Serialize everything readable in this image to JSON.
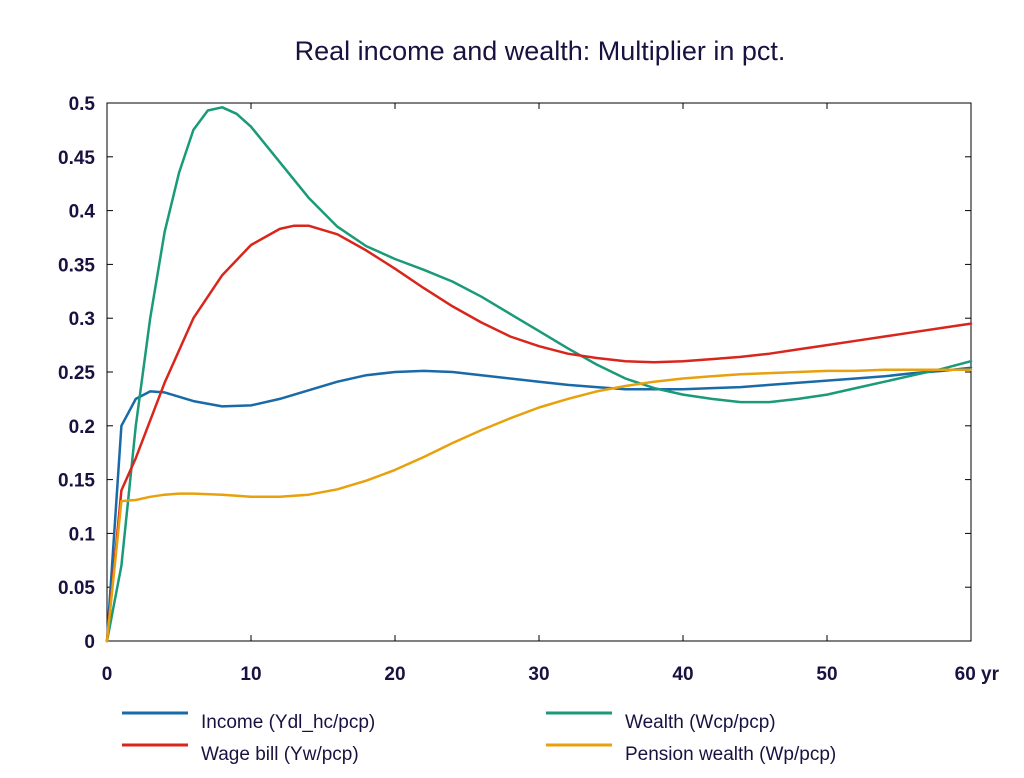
{
  "chart_data": {
    "type": "line",
    "title": "Real income and wealth: Multiplier in pct.",
    "xlabel": "",
    "ylabel": "",
    "xlim": [
      0,
      60
    ],
    "ylim": [
      0,
      0.5
    ],
    "x_ticks": [
      "0",
      "10",
      "20",
      "30",
      "40",
      "50",
      "60 yr"
    ],
    "y_ticks": [
      "0",
      "0.05",
      "0.1",
      "0.15",
      "0.2",
      "0.25",
      "0.3",
      "0.35",
      "0.4",
      "0.45",
      "0.5"
    ],
    "grid": false,
    "legend_position": "bottom",
    "series": [
      {
        "name": "Income (Ydl_hc/pcp)",
        "color": "#1a6aa8",
        "points": [
          [
            0,
            0
          ],
          [
            1,
            0.2
          ],
          [
            2,
            0.225
          ],
          [
            3,
            0.232
          ],
          [
            4,
            0.231
          ],
          [
            6,
            0.223
          ],
          [
            8,
            0.218
          ],
          [
            10,
            0.219
          ],
          [
            12,
            0.225
          ],
          [
            14,
            0.233
          ],
          [
            16,
            0.241
          ],
          [
            18,
            0.247
          ],
          [
            20,
            0.25
          ],
          [
            22,
            0.251
          ],
          [
            24,
            0.25
          ],
          [
            26,
            0.247
          ],
          [
            28,
            0.244
          ],
          [
            30,
            0.241
          ],
          [
            32,
            0.238
          ],
          [
            34,
            0.236
          ],
          [
            36,
            0.234
          ],
          [
            38,
            0.234
          ],
          [
            40,
            0.234
          ],
          [
            42,
            0.235
          ],
          [
            44,
            0.236
          ],
          [
            46,
            0.238
          ],
          [
            48,
            0.24
          ],
          [
            50,
            0.242
          ],
          [
            52,
            0.244
          ],
          [
            54,
            0.246
          ],
          [
            56,
            0.249
          ],
          [
            58,
            0.251
          ],
          [
            60,
            0.254
          ]
        ]
      },
      {
        "name": "Wealth (Wcp/pcp)",
        "color": "#1a9a78",
        "points": [
          [
            0,
            0
          ],
          [
            1,
            0.07
          ],
          [
            2,
            0.2
          ],
          [
            3,
            0.3
          ],
          [
            4,
            0.38
          ],
          [
            5,
            0.435
          ],
          [
            6,
            0.475
          ],
          [
            7,
            0.493
          ],
          [
            8,
            0.496
          ],
          [
            9,
            0.49
          ],
          [
            10,
            0.478
          ],
          [
            12,
            0.445
          ],
          [
            14,
            0.412
          ],
          [
            16,
            0.385
          ],
          [
            18,
            0.367
          ],
          [
            20,
            0.355
          ],
          [
            22,
            0.345
          ],
          [
            24,
            0.334
          ],
          [
            26,
            0.32
          ],
          [
            28,
            0.304
          ],
          [
            30,
            0.288
          ],
          [
            32,
            0.272
          ],
          [
            34,
            0.257
          ],
          [
            36,
            0.244
          ],
          [
            38,
            0.235
          ],
          [
            40,
            0.229
          ],
          [
            42,
            0.225
          ],
          [
            44,
            0.222
          ],
          [
            46,
            0.222
          ],
          [
            48,
            0.225
          ],
          [
            50,
            0.229
          ],
          [
            52,
            0.235
          ],
          [
            54,
            0.241
          ],
          [
            56,
            0.247
          ],
          [
            58,
            0.253
          ],
          [
            60,
            0.26
          ]
        ]
      },
      {
        "name": "Wage bill (Yw/pcp)",
        "color": "#d9261c",
        "points": [
          [
            0,
            0
          ],
          [
            1,
            0.14
          ],
          [
            2,
            0.17
          ],
          [
            4,
            0.24
          ],
          [
            6,
            0.3
          ],
          [
            8,
            0.34
          ],
          [
            10,
            0.368
          ],
          [
            12,
            0.383
          ],
          [
            13,
            0.386
          ],
          [
            14,
            0.386
          ],
          [
            16,
            0.378
          ],
          [
            18,
            0.363
          ],
          [
            20,
            0.346
          ],
          [
            22,
            0.328
          ],
          [
            24,
            0.311
          ],
          [
            26,
            0.296
          ],
          [
            28,
            0.283
          ],
          [
            30,
            0.274
          ],
          [
            32,
            0.267
          ],
          [
            34,
            0.263
          ],
          [
            36,
            0.26
          ],
          [
            38,
            0.259
          ],
          [
            40,
            0.26
          ],
          [
            42,
            0.262
          ],
          [
            44,
            0.264
          ],
          [
            46,
            0.267
          ],
          [
            48,
            0.271
          ],
          [
            50,
            0.275
          ],
          [
            52,
            0.279
          ],
          [
            54,
            0.283
          ],
          [
            56,
            0.287
          ],
          [
            58,
            0.291
          ],
          [
            60,
            0.295
          ]
        ]
      },
      {
        "name": "Pension wealth (Wp/pcp)",
        "color": "#e8a10c",
        "points": [
          [
            0,
            0
          ],
          [
            1,
            0.13
          ],
          [
            2,
            0.131
          ],
          [
            3,
            0.134
          ],
          [
            4,
            0.136
          ],
          [
            5,
            0.137
          ],
          [
            6,
            0.137
          ],
          [
            8,
            0.136
          ],
          [
            10,
            0.134
          ],
          [
            12,
            0.134
          ],
          [
            14,
            0.136
          ],
          [
            16,
            0.141
          ],
          [
            18,
            0.149
          ],
          [
            20,
            0.159
          ],
          [
            22,
            0.171
          ],
          [
            24,
            0.184
          ],
          [
            26,
            0.196
          ],
          [
            28,
            0.207
          ],
          [
            30,
            0.217
          ],
          [
            32,
            0.225
          ],
          [
            34,
            0.232
          ],
          [
            36,
            0.237
          ],
          [
            38,
            0.241
          ],
          [
            40,
            0.244
          ],
          [
            42,
            0.246
          ],
          [
            44,
            0.248
          ],
          [
            46,
            0.249
          ],
          [
            48,
            0.25
          ],
          [
            50,
            0.251
          ],
          [
            52,
            0.251
          ],
          [
            54,
            0.252
          ],
          [
            56,
            0.252
          ],
          [
            58,
            0.252
          ],
          [
            60,
            0.252
          ]
        ]
      }
    ]
  }
}
